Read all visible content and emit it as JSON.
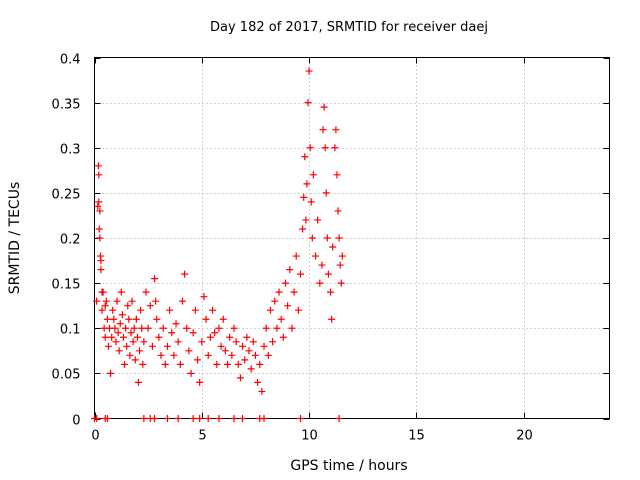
{
  "chart_data": {
    "type": "scatter",
    "title": "Day 182 of 2017, SRMTID for receiver daej",
    "xlabel": "GPS time / hours",
    "ylabel": "SRMTID / TECUs",
    "xlim": [
      0,
      24
    ],
    "ylim": [
      0,
      0.4
    ],
    "xticks": [
      {
        "value": 0,
        "label": "0"
      },
      {
        "value": 5,
        "label": "5"
      },
      {
        "value": 10,
        "label": "10"
      },
      {
        "value": 15,
        "label": "15"
      },
      {
        "value": 20,
        "label": "20"
      }
    ],
    "yticks": [
      {
        "value": 0,
        "label": "0"
      },
      {
        "value": 0.05,
        "label": "0.05"
      },
      {
        "value": 0.1,
        "label": "0.1"
      },
      {
        "value": 0.15,
        "label": "0.15"
      },
      {
        "value": 0.2,
        "label": "0.2"
      },
      {
        "value": 0.25,
        "label": "0.25"
      },
      {
        "value": 0.3,
        "label": "0.3"
      },
      {
        "value": 0.35,
        "label": "0.35"
      },
      {
        "value": 0.4,
        "label": "0.4"
      }
    ],
    "grid": true,
    "marker": "plus",
    "color": "#ff0000",
    "series": [
      {
        "name": "SRMTID",
        "points": [
          [
            0.1,
            0.13
          ],
          [
            0.15,
            0.235
          ],
          [
            0.18,
            0.28
          ],
          [
            0.2,
            0.27
          ],
          [
            0.2,
            0.24
          ],
          [
            0.22,
            0.21
          ],
          [
            0.25,
            0.23
          ],
          [
            0.25,
            0.2
          ],
          [
            0.28,
            0.18
          ],
          [
            0.3,
            0.175
          ],
          [
            0.3,
            0.165
          ],
          [
            0.35,
            0.14
          ],
          [
            0.35,
            0.12
          ],
          [
            0.4,
            0.14
          ],
          [
            0.45,
            0.1
          ],
          [
            0.5,
            0.09
          ],
          [
            0.5,
            0.125
          ],
          [
            0.55,
            0.13
          ],
          [
            0.6,
            0.11
          ],
          [
            0.65,
            0.08
          ],
          [
            0.7,
            0.1
          ],
          [
            0.75,
            0.05
          ],
          [
            0.8,
            0.09
          ],
          [
            0.85,
            0.12
          ],
          [
            0.9,
            0.11
          ],
          [
            0.95,
            0.1
          ],
          [
            1.0,
            0.085
          ],
          [
            1.05,
            0.13
          ],
          [
            1.1,
            0.095
          ],
          [
            1.15,
            0.075
          ],
          [
            1.2,
            0.105
          ],
          [
            1.25,
            0.14
          ],
          [
            1.3,
            0.115
          ],
          [
            1.35,
            0.09
          ],
          [
            1.4,
            0.06
          ],
          [
            1.45,
            0.1
          ],
          [
            1.5,
            0.08
          ],
          [
            1.55,
            0.125
          ],
          [
            1.6,
            0.11
          ],
          [
            1.65,
            0.07
          ],
          [
            1.7,
            0.095
          ],
          [
            1.75,
            0.13
          ],
          [
            1.8,
            0.085
          ],
          [
            1.85,
            0.1
          ],
          [
            1.9,
            0.065
          ],
          [
            1.95,
            0.11
          ],
          [
            2.0,
            0.09
          ],
          [
            2.05,
            0.04
          ],
          [
            2.1,
            0.075
          ],
          [
            2.15,
            0.12
          ],
          [
            2.2,
            0.1
          ],
          [
            2.25,
            0.06
          ],
          [
            2.3,
            0.085
          ],
          [
            2.4,
            0.14
          ],
          [
            2.5,
            0.1
          ],
          [
            2.6,
            0.125
          ],
          [
            2.7,
            0.08
          ],
          [
            2.8,
            0.155
          ],
          [
            2.85,
            0.13
          ],
          [
            2.9,
            0.11
          ],
          [
            3.0,
            0.09
          ],
          [
            3.1,
            0.07
          ],
          [
            3.2,
            0.1
          ],
          [
            3.3,
            0.06
          ],
          [
            3.4,
            0.08
          ],
          [
            3.5,
            0.12
          ],
          [
            3.6,
            0.095
          ],
          [
            3.7,
            0.07
          ],
          [
            3.8,
            0.105
          ],
          [
            3.9,
            0.085
          ],
          [
            4.0,
            0.06
          ],
          [
            4.1,
            0.13
          ],
          [
            4.2,
            0.16
          ],
          [
            4.3,
            0.1
          ],
          [
            4.4,
            0.075
          ],
          [
            4.5,
            0.05
          ],
          [
            4.6,
            0.095
          ],
          [
            4.7,
            0.12
          ],
          [
            4.8,
            0.065
          ],
          [
            4.9,
            0.04
          ],
          [
            5.0,
            0.085
          ],
          [
            5.1,
            0.135
          ],
          [
            5.2,
            0.11
          ],
          [
            5.3,
            0.07
          ],
          [
            5.4,
            0.09
          ],
          [
            5.5,
            0.12
          ],
          [
            5.6,
            0.095
          ],
          [
            5.7,
            0.06
          ],
          [
            5.8,
            0.1
          ],
          [
            5.9,
            0.08
          ],
          [
            6.0,
            0.11
          ],
          [
            6.1,
            0.075
          ],
          [
            6.2,
            0.06
          ],
          [
            6.3,
            0.09
          ],
          [
            6.4,
            0.07
          ],
          [
            6.5,
            0.1
          ],
          [
            6.6,
            0.085
          ],
          [
            6.7,
            0.06
          ],
          [
            6.8,
            0.045
          ],
          [
            6.9,
            0.08
          ],
          [
            7.0,
            0.065
          ],
          [
            7.1,
            0.09
          ],
          [
            7.2,
            0.075
          ],
          [
            7.3,
            0.055
          ],
          [
            7.4,
            0.085
          ],
          [
            7.5,
            0.07
          ],
          [
            7.6,
            0.04
          ],
          [
            7.7,
            0.06
          ],
          [
            7.8,
            0.03
          ],
          [
            7.9,
            0.08
          ],
          [
            8.0,
            0.1
          ],
          [
            8.1,
            0.07
          ],
          [
            8.2,
            0.12
          ],
          [
            8.3,
            0.085
          ],
          [
            8.4,
            0.13
          ],
          [
            8.5,
            0.1
          ],
          [
            8.6,
            0.14
          ],
          [
            8.7,
            0.11
          ],
          [
            8.8,
            0.09
          ],
          [
            8.9,
            0.15
          ],
          [
            9.0,
            0.125
          ],
          [
            9.1,
            0.165
          ],
          [
            9.2,
            0.1
          ],
          [
            9.3,
            0.14
          ],
          [
            9.4,
            0.18
          ],
          [
            9.5,
            0.12
          ],
          [
            9.6,
            0.16
          ],
          [
            9.7,
            0.21
          ],
          [
            9.75,
            0.245
          ],
          [
            9.8,
            0.29
          ],
          [
            9.85,
            0.22
          ],
          [
            9.9,
            0.26
          ],
          [
            9.95,
            0.35
          ],
          [
            10.0,
            0.385
          ],
          [
            10.05,
            0.3
          ],
          [
            10.1,
            0.24
          ],
          [
            10.15,
            0.2
          ],
          [
            10.2,
            0.27
          ],
          [
            10.3,
            0.18
          ],
          [
            10.4,
            0.22
          ],
          [
            10.5,
            0.15
          ],
          [
            10.6,
            0.17
          ],
          [
            10.65,
            0.32
          ],
          [
            10.7,
            0.345
          ],
          [
            10.75,
            0.3
          ],
          [
            10.8,
            0.25
          ],
          [
            10.85,
            0.2
          ],
          [
            10.9,
            0.16
          ],
          [
            11.0,
            0.14
          ],
          [
            11.05,
            0.11
          ],
          [
            11.1,
            0.19
          ],
          [
            11.2,
            0.3
          ],
          [
            11.25,
            0.32
          ],
          [
            11.3,
            0.27
          ],
          [
            11.35,
            0.23
          ],
          [
            11.4,
            0.2
          ],
          [
            11.45,
            0.17
          ],
          [
            11.5,
            0.15
          ],
          [
            11.55,
            0.18
          ]
        ]
      }
    ],
    "zero_points_x": [
      0.0,
      0.1,
      0.5,
      0.6,
      2.3,
      2.6,
      2.8,
      3.4,
      3.9,
      4.6,
      4.9,
      5.3,
      5.8,
      6.5,
      6.9,
      7.7,
      7.9,
      9.6,
      11.4
    ]
  }
}
